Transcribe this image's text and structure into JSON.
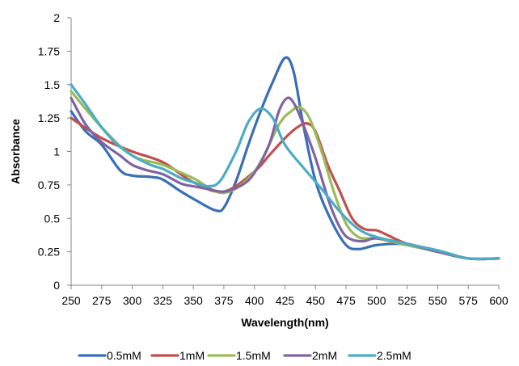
{
  "chart_data": {
    "type": "line",
    "title": "",
    "xlabel": "Wavelength(nm)",
    "ylabel": "Absorbance",
    "xlim": [
      250,
      600
    ],
    "ylim": [
      0,
      2
    ],
    "xticks": [
      "250",
      "275",
      "300",
      "325",
      "350",
      "375",
      "400",
      "425",
      "450",
      "475",
      "500",
      "525",
      "550",
      "575",
      "600"
    ],
    "yticks": [
      "0",
      "0.25",
      "0.5",
      "0.75",
      "1",
      "1.25",
      "1.5",
      "1.75",
      "2"
    ],
    "grid": false,
    "legend_position": "bottom",
    "x": [
      250,
      275,
      300,
      325,
      350,
      375,
      400,
      425,
      450,
      475,
      500,
      525,
      550,
      575,
      600
    ],
    "series": [
      {
        "name": "0.5mM",
        "color": "#3A6EB5",
        "points": [
          [
            250,
            1.3
          ],
          [
            262,
            1.15
          ],
          [
            275,
            1.05
          ],
          [
            290,
            0.86
          ],
          [
            300,
            0.82
          ],
          [
            315,
            0.81
          ],
          [
            325,
            0.79
          ],
          [
            340,
            0.7
          ],
          [
            355,
            0.62
          ],
          [
            368,
            0.56
          ],
          [
            375,
            0.58
          ],
          [
            385,
            0.78
          ],
          [
            395,
            1.05
          ],
          [
            405,
            1.3
          ],
          [
            415,
            1.52
          ],
          [
            425,
            1.7
          ],
          [
            432,
            1.6
          ],
          [
            440,
            1.2
          ],
          [
            450,
            0.78
          ],
          [
            462,
            0.5
          ],
          [
            475,
            0.3
          ],
          [
            485,
            0.27
          ],
          [
            495,
            0.29
          ],
          [
            500,
            0.3
          ],
          [
            515,
            0.31
          ],
          [
            525,
            0.3
          ],
          [
            550,
            0.25
          ],
          [
            575,
            0.2
          ],
          [
            600,
            0.2
          ]
        ]
      },
      {
        "name": "1mM",
        "color": "#C0504D",
        "points": [
          [
            250,
            1.25
          ],
          [
            275,
            1.1
          ],
          [
            300,
            1.0
          ],
          [
            325,
            0.92
          ],
          [
            350,
            0.77
          ],
          [
            375,
            0.7
          ],
          [
            400,
            0.85
          ],
          [
            412,
            0.97
          ],
          [
            425,
            1.1
          ],
          [
            435,
            1.18
          ],
          [
            443,
            1.21
          ],
          [
            450,
            1.15
          ],
          [
            460,
            0.9
          ],
          [
            470,
            0.7
          ],
          [
            480,
            0.5
          ],
          [
            490,
            0.42
          ],
          [
            500,
            0.41
          ],
          [
            510,
            0.37
          ],
          [
            525,
            0.31
          ],
          [
            550,
            0.26
          ],
          [
            575,
            0.2
          ],
          [
            600,
            0.2
          ]
        ]
      },
      {
        "name": "1.5mM",
        "color": "#9BBB59",
        "points": [
          [
            250,
            1.45
          ],
          [
            275,
            1.18
          ],
          [
            300,
            0.97
          ],
          [
            325,
            0.9
          ],
          [
            350,
            0.8
          ],
          [
            375,
            0.69
          ],
          [
            400,
            0.85
          ],
          [
            420,
            1.2
          ],
          [
            430,
            1.3
          ],
          [
            437,
            1.33
          ],
          [
            445,
            1.25
          ],
          [
            455,
            1.0
          ],
          [
            465,
            0.7
          ],
          [
            475,
            0.46
          ],
          [
            485,
            0.36
          ],
          [
            495,
            0.35
          ],
          [
            500,
            0.35
          ],
          [
            525,
            0.3
          ],
          [
            550,
            0.25
          ],
          [
            575,
            0.2
          ],
          [
            600,
            0.2
          ]
        ]
      },
      {
        "name": "2mM",
        "color": "#8064A2",
        "points": [
          [
            250,
            1.4
          ],
          [
            262,
            1.2
          ],
          [
            275,
            1.07
          ],
          [
            290,
            0.97
          ],
          [
            300,
            0.9
          ],
          [
            312,
            0.86
          ],
          [
            325,
            0.83
          ],
          [
            340,
            0.76
          ],
          [
            350,
            0.74
          ],
          [
            362,
            0.72
          ],
          [
            375,
            0.7
          ],
          [
            390,
            0.75
          ],
          [
            400,
            0.84
          ],
          [
            412,
            1.05
          ],
          [
            420,
            1.3
          ],
          [
            427,
            1.4
          ],
          [
            433,
            1.35
          ],
          [
            440,
            1.2
          ],
          [
            450,
            0.95
          ],
          [
            462,
            0.6
          ],
          [
            472,
            0.4
          ],
          [
            480,
            0.34
          ],
          [
            490,
            0.33
          ],
          [
            500,
            0.35
          ],
          [
            525,
            0.31
          ],
          [
            550,
            0.25
          ],
          [
            575,
            0.2
          ],
          [
            600,
            0.2
          ]
        ]
      },
      {
        "name": "2.5mM",
        "color": "#4BACC6",
        "points": [
          [
            250,
            1.5
          ],
          [
            262,
            1.35
          ],
          [
            275,
            1.18
          ],
          [
            288,
            1.05
          ],
          [
            300,
            0.97
          ],
          [
            315,
            0.9
          ],
          [
            325,
            0.87
          ],
          [
            340,
            0.8
          ],
          [
            350,
            0.77
          ],
          [
            362,
            0.74
          ],
          [
            372,
            0.78
          ],
          [
            385,
            1.0
          ],
          [
            395,
            1.22
          ],
          [
            405,
            1.32
          ],
          [
            415,
            1.25
          ],
          [
            425,
            1.05
          ],
          [
            440,
            0.88
          ],
          [
            455,
            0.72
          ],
          [
            470,
            0.55
          ],
          [
            485,
            0.42
          ],
          [
            500,
            0.36
          ],
          [
            525,
            0.31
          ],
          [
            550,
            0.26
          ],
          [
            575,
            0.2
          ],
          [
            600,
            0.2
          ]
        ]
      }
    ]
  }
}
